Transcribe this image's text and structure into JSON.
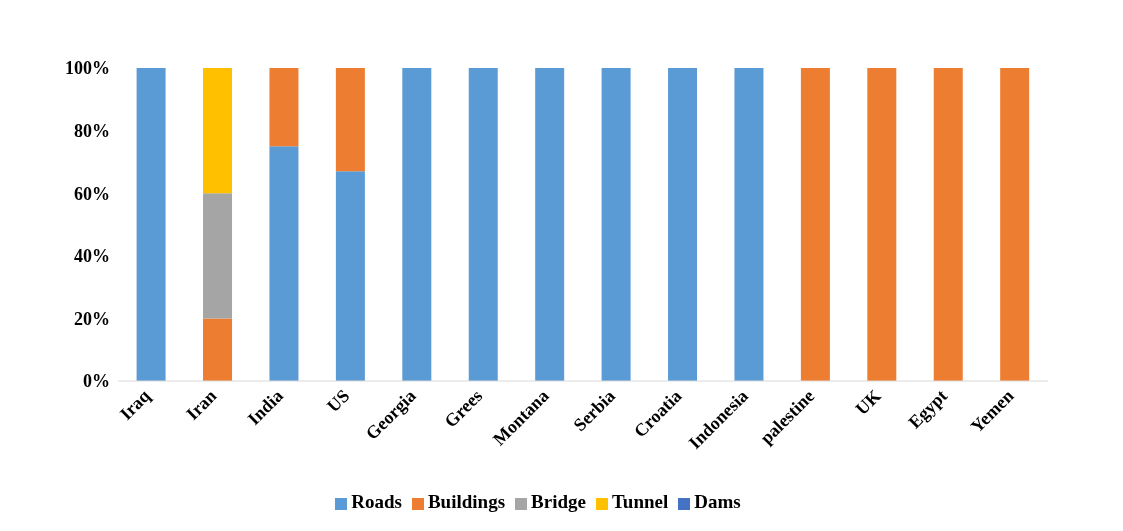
{
  "chart_data": {
    "type": "bar",
    "stacked": true,
    "categories": [
      "Iraq",
      "Iran",
      "India",
      "US",
      "Georgia",
      "Grees",
      "Montana",
      "Serbia",
      "Croatia",
      "Indonesia",
      "palestine",
      "UK",
      "Egypt",
      "Yemen"
    ],
    "series": [
      {
        "name": "Roads",
        "color": "#5b9bd5",
        "values": [
          100,
          0,
          75,
          67,
          100,
          100,
          100,
          100,
          100,
          100,
          0,
          0,
          0,
          0
        ]
      },
      {
        "name": "Buildings",
        "color": "#ed7d31",
        "values": [
          0,
          20,
          25,
          33,
          0,
          0,
          0,
          0,
          0,
          0,
          100,
          100,
          100,
          100
        ]
      },
      {
        "name": "Bridge",
        "color": "#a5a5a5",
        "values": [
          0,
          40,
          0,
          0,
          0,
          0,
          0,
          0,
          0,
          0,
          0,
          0,
          0,
          0
        ]
      },
      {
        "name": "Tunnel",
        "color": "#ffc000",
        "values": [
          0,
          40,
          0,
          0,
          0,
          0,
          0,
          0,
          0,
          0,
          0,
          0,
          0,
          0
        ]
      },
      {
        "name": "Dams",
        "color": "#4472c4",
        "values": [
          0,
          0,
          0,
          0,
          0,
          0,
          0,
          0,
          0,
          0,
          0,
          0,
          0,
          0
        ]
      }
    ],
    "ylim": [
      0,
      100
    ],
    "yticks": [
      {
        "value": 0,
        "label": "0%"
      },
      {
        "value": 20,
        "label": "20%"
      },
      {
        "value": 40,
        "label": "40%"
      },
      {
        "value": 60,
        "label": "60%"
      },
      {
        "value": 80,
        "label": "80%"
      },
      {
        "value": 100,
        "label": "100%"
      }
    ],
    "grid": false,
    "legend": "bottom"
  }
}
